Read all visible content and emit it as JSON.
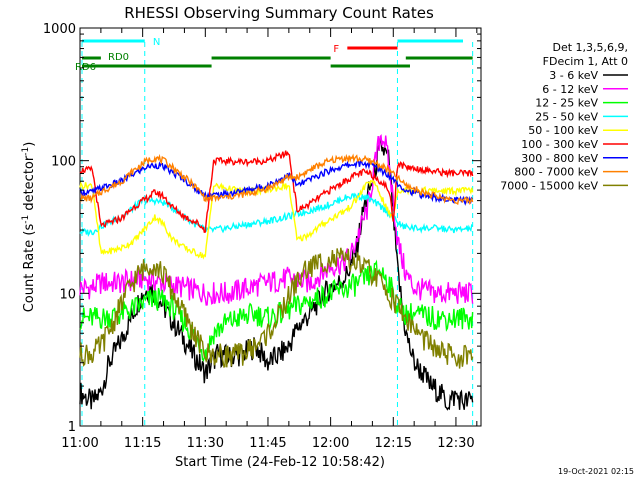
{
  "chart_data": {
    "type": "line",
    "title": "RHESSI Observing Summary Count Rates",
    "xlabel": "Start Time (24-Feb-12 10:58:42)",
    "ylabel_base": "Count Rate (s",
    "ylabel_sup1": "-1",
    "ylabel_mid": " detector",
    "ylabel_sup2": "-1",
    "ylabel_end": ")",
    "yscale": "log",
    "ylim": [
      1,
      1000
    ],
    "xlim_minutes_after_1100": [
      0,
      96
    ],
    "x_tick_labels": [
      "11:00",
      "11:15",
      "11:30",
      "11:45",
      "12:00",
      "12:15",
      "12:30"
    ],
    "x_tick_minutes": [
      0,
      15,
      30,
      45,
      60,
      75,
      90
    ],
    "y_tick_labels": [
      "1",
      "10",
      "100",
      "1000"
    ],
    "y_tick_values": [
      1,
      10,
      100,
      1000
    ],
    "legend_header": [
      "Det 1,3,5,6,9,",
      "FDecim 1, Att 0"
    ],
    "series": [
      {
        "name": "3 - 6 keV",
        "color": "#000000",
        "x": [
          0,
          3,
          5,
          7,
          10,
          13,
          15,
          17,
          19,
          21,
          24,
          27,
          30,
          33,
          36,
          39,
          42,
          45,
          48,
          50,
          52,
          55,
          58,
          60,
          62,
          64,
          66,
          68,
          70,
          72,
          74,
          76,
          78,
          80,
          82,
          84,
          86,
          88,
          90,
          92,
          94
        ],
        "values": [
          1.8,
          1.5,
          1.8,
          3.0,
          4.5,
          7.5,
          10,
          11,
          9,
          7,
          5,
          3.5,
          2.5,
          3.5,
          3.3,
          3.5,
          4.0,
          3.0,
          3.5,
          4.0,
          5.5,
          7.0,
          9.5,
          11,
          12,
          14,
          20,
          45,
          70,
          130,
          100,
          15,
          5.0,
          3.0,
          2.5,
          2.0,
          1.8,
          1.5,
          1.7,
          1.5,
          1.6
        ]
      },
      {
        "name": "6 - 12 keV",
        "color": "#ff00ff",
        "x": [
          0,
          3,
          5,
          10,
          15,
          20,
          25,
          30,
          33,
          36,
          40,
          45,
          50,
          55,
          60,
          63,
          65,
          67,
          69,
          70,
          71,
          72,
          73,
          74,
          75,
          76,
          78,
          80,
          85,
          90,
          94
        ],
        "values": [
          11,
          11,
          12,
          12,
          13,
          12,
          11,
          10,
          10,
          10,
          11,
          12,
          13,
          12,
          16,
          17,
          20,
          30,
          45,
          70,
          110,
          160,
          140,
          90,
          50,
          25,
          14,
          11,
          10,
          10,
          10
        ]
      },
      {
        "name": "12 - 25 keV",
        "color": "#00ff00",
        "x": [
          0,
          3,
          5,
          10,
          14,
          17,
          19,
          22,
          25,
          28,
          30,
          32,
          35,
          38,
          42,
          45,
          48,
          52,
          56,
          60,
          64,
          67,
          70,
          72,
          74,
          76,
          78,
          80,
          85,
          90,
          94
        ],
        "values": [
          6.5,
          6.5,
          6.5,
          7,
          8,
          9,
          9,
          8,
          6,
          4.5,
          3.5,
          5,
          6,
          6.5,
          7,
          6.5,
          7,
          8,
          9,
          10,
          11,
          12,
          14,
          15,
          12,
          8,
          7,
          7,
          6.5,
          6.5,
          6.5
        ]
      },
      {
        "name": "25 - 50 keV",
        "color": "#00ffff",
        "x": [
          0,
          3,
          5,
          10,
          15,
          18,
          21,
          24,
          27,
          30,
          32,
          35,
          40,
          45,
          50,
          55,
          60,
          63,
          66,
          69,
          72,
          75,
          77,
          80,
          85,
          90,
          94
        ],
        "values": [
          29,
          29,
          32,
          38,
          50,
          50,
          47,
          40,
          34,
          30,
          30,
          31,
          33,
          35,
          38,
          42,
          47,
          52,
          55,
          52,
          45,
          38,
          32,
          31,
          31,
          30,
          31
        ]
      },
      {
        "name": "50 - 100 keV",
        "color": "#ffff00",
        "x": [
          0,
          3,
          5,
          10,
          13,
          16,
          18,
          20,
          22,
          25,
          28,
          30,
          32,
          35,
          40,
          45,
          50,
          52,
          55,
          58,
          61,
          64,
          66,
          68,
          69,
          71,
          72,
          74,
          75,
          76,
          78,
          82,
          86,
          90,
          94
        ],
        "values": [
          65,
          65,
          20,
          22,
          25,
          32,
          38,
          33,
          26,
          22,
          20,
          19,
          65,
          62,
          58,
          60,
          65,
          25,
          28,
          33,
          38,
          43,
          50,
          62,
          70,
          65,
          54,
          40,
          38,
          60,
          60,
          60,
          59,
          59,
          60
        ]
      },
      {
        "name": "100 - 300 keV",
        "color": "#ff0000",
        "x": [
          0,
          3,
          5,
          10,
          13,
          16,
          18,
          20,
          22,
          25,
          28,
          30,
          32,
          35,
          40,
          45,
          50,
          52,
          55,
          58,
          61,
          64,
          66,
          68,
          70,
          72,
          74,
          75,
          76,
          78,
          82,
          86,
          90,
          94
        ],
        "values": [
          85,
          85,
          32,
          37,
          45,
          52,
          58,
          54,
          45,
          38,
          34,
          30,
          100,
          99,
          98,
          100,
          115,
          42,
          47,
          55,
          63,
          72,
          78,
          82,
          78,
          70,
          60,
          35,
          95,
          90,
          86,
          82,
          80,
          80
        ]
      },
      {
        "name": "300 - 800 keV",
        "color": "#0000ff",
        "x": [
          0,
          3,
          5,
          10,
          13,
          16,
          18,
          20,
          22,
          25,
          28,
          30,
          32,
          35,
          40,
          45,
          50,
          52,
          55,
          58,
          61,
          64,
          66,
          68,
          70,
          72,
          74,
          76,
          78,
          82,
          86,
          90,
          94
        ],
        "values": [
          58,
          58,
          62,
          70,
          80,
          90,
          93,
          90,
          82,
          72,
          60,
          55,
          55,
          56,
          60,
          65,
          78,
          65,
          72,
          80,
          87,
          92,
          95,
          95,
          92,
          85,
          78,
          68,
          60,
          55,
          52,
          50,
          50
        ]
      },
      {
        "name": "800 - 7000 keV",
        "color": "#ff8000",
        "x": [
          0,
          3,
          5,
          10,
          13,
          16,
          18,
          20,
          22,
          25,
          28,
          30,
          32,
          35,
          40,
          45,
          50,
          52,
          55,
          58,
          61,
          64,
          66,
          68,
          70,
          72,
          74,
          76,
          78,
          82,
          86,
          90,
          94
        ],
        "values": [
          52,
          52,
          58,
          70,
          85,
          100,
          105,
          100,
          90,
          75,
          62,
          52,
          52,
          53,
          56,
          62,
          75,
          75,
          85,
          95,
          102,
          105,
          104,
          102,
          98,
          92,
          84,
          74,
          65,
          58,
          53,
          50,
          50
        ]
      },
      {
        "name": "7000 - 15000 keV",
        "color": "#808000",
        "x": [
          0,
          3,
          5,
          8,
          11,
          14,
          17,
          20,
          23,
          26,
          28,
          30,
          33,
          36,
          39,
          42,
          45,
          48,
          51,
          54,
          57,
          60,
          63,
          66,
          69,
          72,
          75,
          78,
          81,
          84,
          87,
          90,
          94
        ],
        "values": [
          3.5,
          3.5,
          4,
          6,
          10,
          14,
          17,
          14,
          9,
          6,
          4.5,
          3.5,
          3.4,
          3.4,
          3.5,
          4,
          5,
          7,
          11,
          15,
          17,
          18,
          18,
          17,
          15,
          12,
          9,
          6.5,
          5,
          4,
          3.5,
          3.3,
          3.3
        ]
      }
    ],
    "state_bars": [
      {
        "label": "N",
        "color": "#00ffff",
        "segments": [
          [
            0,
            15.5
          ],
          [
            76,
            96
          ]
        ]
      },
      {
        "label": "F",
        "color": "#ff0000",
        "segments": [
          [
            64,
            76
          ]
        ]
      },
      {
        "label": "RD0",
        "color": "#008000",
        "segments": [
          [
            0,
            5
          ],
          [
            31.5,
            60
          ],
          [
            78,
            94
          ]
        ]
      },
      {
        "label": "RD6",
        "color": "#008000",
        "segments": [
          [
            0,
            31.5
          ],
          [
            60,
            79
          ]
        ]
      }
    ],
    "vertical_lines_minutes": [
      0,
      15.5,
      76,
      94
    ],
    "timestamp": "19-Oct-2021 02:15"
  }
}
